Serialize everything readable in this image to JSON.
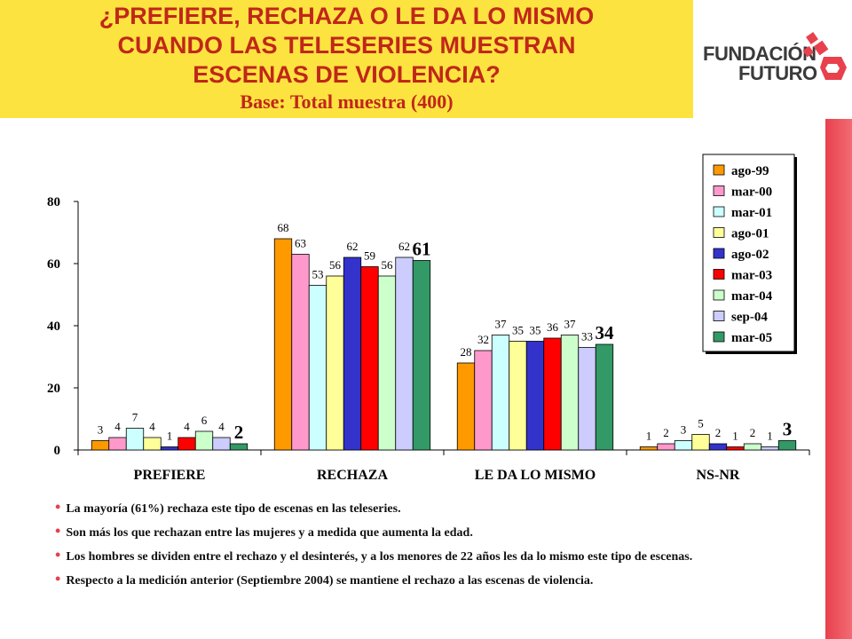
{
  "header": {
    "title_lines": [
      "¿PREFIERE, RECHAZA O LE DA LO MISMO",
      "CUANDO LAS TELESERIES MUESTRAN",
      "ESCENAS DE VIOLENCIA?"
    ],
    "subtitle": "Base: Total muestra (400)"
  },
  "logo": {
    "line1": "FUNDACIÓN",
    "line2": "FUTURO",
    "icon": "key-icon"
  },
  "colors": {
    "title_bg": "#fde33f",
    "title_text": "#c0271a",
    "accent_red": "#e8414d",
    "logo_text": "#3a3a3a"
  },
  "chart_data": {
    "type": "bar",
    "categories": [
      "PREFIERE",
      "RECHAZA",
      "LE DA LO MISMO",
      "NS-NR"
    ],
    "ylim": [
      0,
      80
    ],
    "yticks": [
      0,
      20,
      40,
      60,
      80
    ],
    "grid": false,
    "legend_position": "top-right",
    "series": [
      {
        "name": "ago-99",
        "color": "#ff9900",
        "values": [
          3,
          68,
          28,
          1
        ]
      },
      {
        "name": "mar-00",
        "color": "#ff99cc",
        "values": [
          4,
          63,
          32,
          2
        ]
      },
      {
        "name": "mar-01",
        "color": "#ccffff",
        "values": [
          7,
          53,
          37,
          3
        ]
      },
      {
        "name": "ago-01",
        "color": "#ffff99",
        "values": [
          4,
          56,
          35,
          5
        ]
      },
      {
        "name": "ago-02",
        "color": "#3333cc",
        "values": [
          1,
          62,
          35,
          2
        ]
      },
      {
        "name": "mar-03",
        "color": "#ff0000",
        "values": [
          4,
          59,
          36,
          1
        ]
      },
      {
        "name": "mar-04",
        "color": "#ccffcc",
        "values": [
          6,
          56,
          37,
          2
        ]
      },
      {
        "name": "sep-04",
        "color": "#ccccff",
        "values": [
          4,
          62,
          33,
          1
        ]
      },
      {
        "name": "mar-05",
        "color": "#339966",
        "values": [
          2,
          61,
          34,
          3
        ]
      }
    ]
  },
  "bullets": [
    "La mayoría (61%) rechaza este tipo de escenas en las teleseries.",
    "Son más los que rechazan entre las mujeres y a medida que aumenta la edad.",
    "Los hombres se dividen entre el rechazo y el desinterés, y a los menores de 22 años les da lo mismo este tipo de escenas.",
    "Respecto a la medición anterior (Septiembre 2004) se mantiene el rechazo a las escenas de violencia."
  ]
}
